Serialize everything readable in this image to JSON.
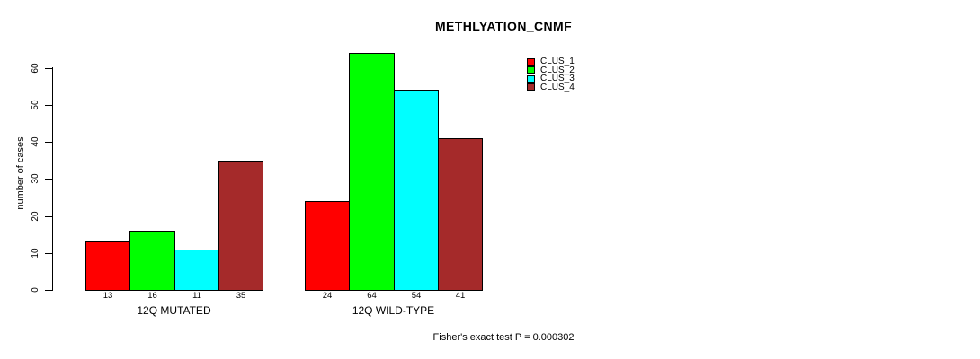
{
  "title": "METHLYATION_CNMF",
  "footer": "Fisher's exact test P = 0.000302",
  "y_axis": {
    "label": "number of cases",
    "ticks": [
      0,
      10,
      20,
      30,
      40,
      50,
      60
    ]
  },
  "chart_data": {
    "type": "bar",
    "title": "METHLYATION_CNMF",
    "xlabel": "",
    "ylabel": "number of cases",
    "ylim": [
      0,
      65
    ],
    "grid": false,
    "legend_position": "top-right",
    "bar_value_labels_shown": true,
    "categories": [
      "12Q MUTATED",
      "12Q WILD-TYPE"
    ],
    "series": [
      {
        "name": "CLUS_1",
        "color": "#ff0000",
        "values": [
          13,
          24
        ]
      },
      {
        "name": "CLUS_2",
        "color": "#00ff00",
        "values": [
          16,
          64
        ]
      },
      {
        "name": "CLUS_3",
        "color": "#00ffff",
        "values": [
          11,
          54
        ]
      },
      {
        "name": "CLUS_4",
        "color": "#a52a2a",
        "values": [
          35,
          41
        ]
      }
    ],
    "annotation": "Fisher's exact test P = 0.000302"
  }
}
